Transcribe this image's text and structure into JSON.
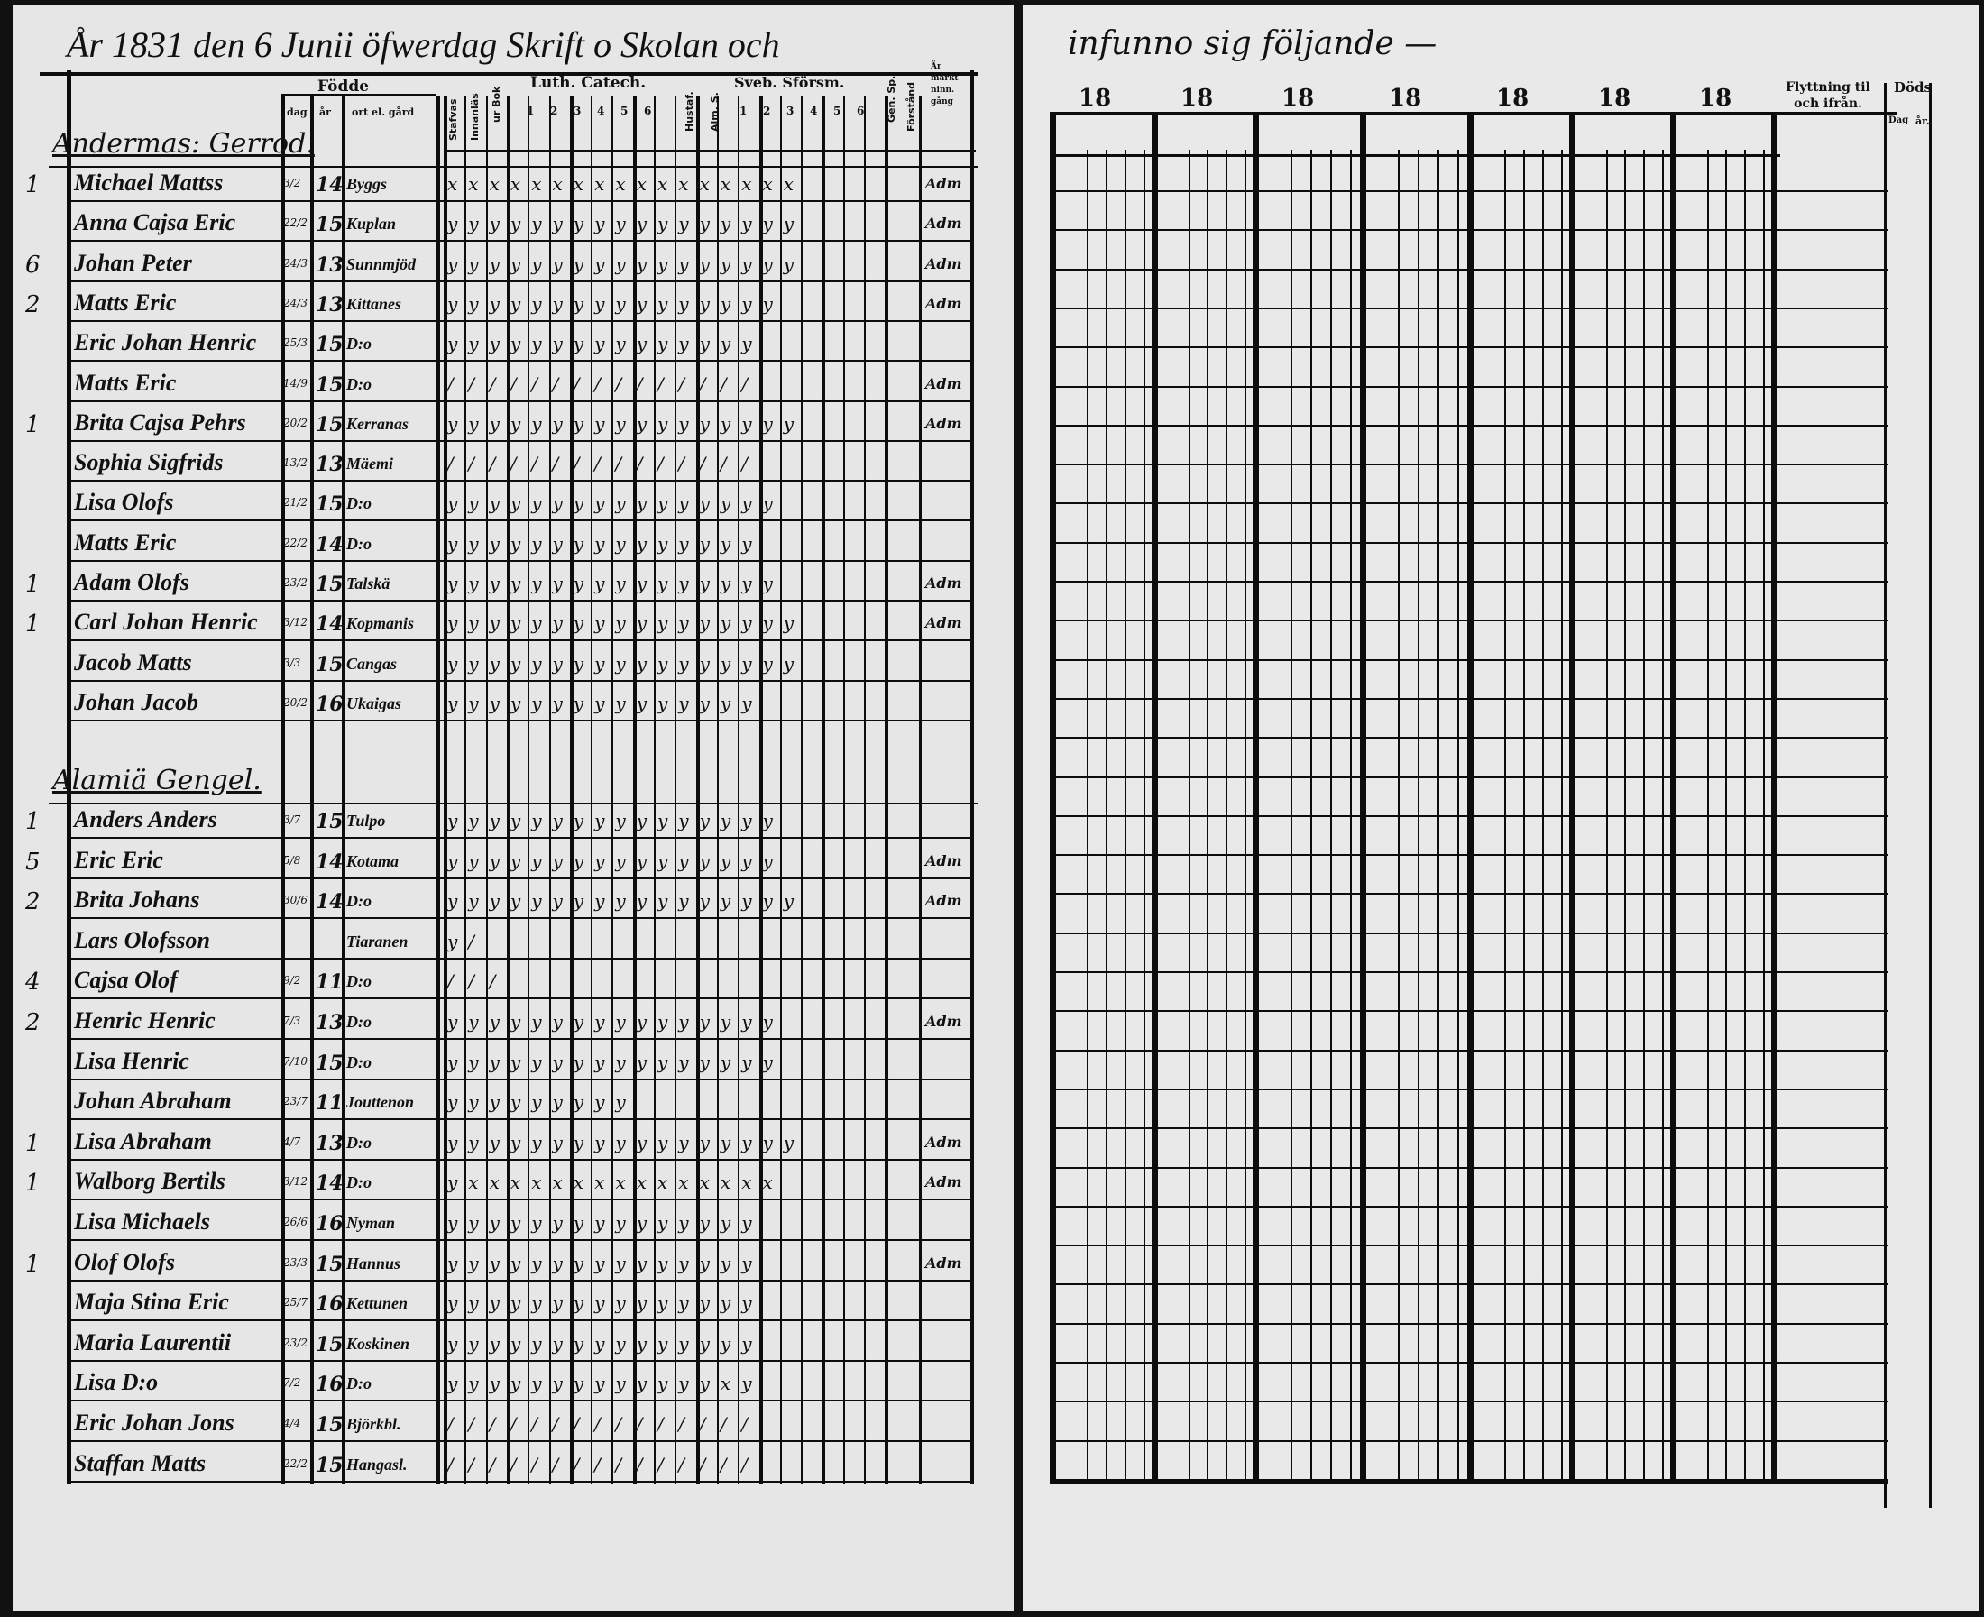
{
  "header": {
    "title_left": "År 1831 den 6 Junii öfwerdag Skrift o Skolan och",
    "title_right": "infunno sig följande —"
  },
  "columns": {
    "fodde": "Födde",
    "dag": "dag",
    "ar": "år",
    "ort": "ort el. gård",
    "stafvas": "Stafvas",
    "innanlas": "Innanläs",
    "ur_bok": "ur Bok",
    "luth_catech": "Luth. Catech.",
    "luth_nums": [
      "1",
      "2",
      "3",
      "4",
      "5",
      "6"
    ],
    "hustaf": "Hustaf.",
    "alm_s": "Alm. S.",
    "sveb_sforsm": "Sveb. Sförsm.",
    "sveb_nums": [
      "1",
      "2",
      "3",
      "4",
      "5",
      "6"
    ],
    "gen_sp": "Gen. Sp.",
    "forstand": "Förstånd",
    "nattv": "Är märkt ninn. gång",
    "years": [
      "18",
      "18",
      "18",
      "18",
      "18",
      "18",
      "18"
    ],
    "flyttning": "Flyttning til och ifrån.",
    "dods": "Döds",
    "dods_sub": [
      "Dag",
      "år."
    ]
  },
  "sections": [
    {
      "title": "Andermas: Gerrod.",
      "rows": [
        {
          "num": "1",
          "name": "Michael Mattss",
          "dag": "3/2",
          "ar": "14",
          "ort": "Byggs",
          "marks": "xxxxxxxxxxxxxxxxx",
          "note": "Adm"
        },
        {
          "num": "",
          "name": "Anna Cajsa Eric",
          "dag": "22/2",
          "ar": "15",
          "ort": "Kuplan",
          "marks": "yyyyyyyyyyyyyyyyy",
          "note": "Adm"
        },
        {
          "num": "6",
          "name": "Johan Peter",
          "dag": "24/3",
          "ar": "13",
          "ort": "Sunnmjöd",
          "marks": "yyyyyyyyyyyyyyyyy",
          "note": "Adm"
        },
        {
          "num": "2",
          "name": "Matts Eric",
          "dag": "24/3",
          "ar": "13",
          "ort": "Kittanes",
          "marks": "yyyyyyyyyyyyyyyy",
          "note": "Adm"
        },
        {
          "num": "",
          "name": "Eric Johan Henric",
          "dag": "25/3",
          "ar": "15",
          "ort": "D:o",
          "marks": "yyyyyyyyyyyyyyy",
          "note": ""
        },
        {
          "num": "",
          "name": "Matts Eric",
          "dag": "14/9",
          "ar": "15",
          "ort": "D:o",
          "marks": "///////////////",
          "note": "Adm"
        },
        {
          "num": "1",
          "name": "Brita Cajsa Pehrs",
          "dag": "20/2",
          "ar": "15",
          "ort": "Kerranas",
          "marks": "yyyyyyyyyyyyyyyyy",
          "note": "Adm"
        },
        {
          "num": "",
          "name": "Sophia Sigfrids",
          "dag": "13/2",
          "ar": "13",
          "ort": "Mäemi",
          "marks": "///////////////",
          "note": ""
        },
        {
          "num": "",
          "name": "Lisa Olofs",
          "dag": "21/2",
          "ar": "15",
          "ort": "D:o",
          "marks": "yyyyyyyyyyyyyyyy",
          "note": ""
        },
        {
          "num": "",
          "name": "Matts Eric",
          "dag": "22/2",
          "ar": "14",
          "ort": "D:o",
          "marks": "yyyyyyyyyyyyyyy",
          "note": ""
        },
        {
          "num": "1",
          "name": "Adam Olofs",
          "dag": "23/2",
          "ar": "15",
          "ort": "Talskä",
          "marks": "yyyyyyyyyyyyyyyy",
          "note": "Adm"
        },
        {
          "num": "1",
          "name": "Carl Johan Henric",
          "dag": "3/12",
          "ar": "14",
          "ort": "Kopmanis",
          "marks": "yyyyyyyyyyyyyyyyy",
          "note": "Adm"
        },
        {
          "num": "",
          "name": "Jacob Matts",
          "dag": "3/3",
          "ar": "15",
          "ort": "Cangas",
          "marks": "yyyyyyyyyyyyyyyyy",
          "note": ""
        },
        {
          "num": "",
          "name": "Johan Jacob",
          "dag": "20/2",
          "ar": "16",
          "ort": "Ukaigas",
          "marks": "yyyyyyyyyyyyyyy",
          "note": ""
        }
      ]
    },
    {
      "title": "Alamiä Gengel.",
      "rows": [
        {
          "num": "1",
          "name": "Anders Anders",
          "dag": "3/7",
          "ar": "15",
          "ort": "Tulpo",
          "marks": "yyyyyyyyyyyyyyyy",
          "note": ""
        },
        {
          "num": "5",
          "name": "Eric Eric",
          "dag": "5/8",
          "ar": "14",
          "ort": "Kotama",
          "marks": "yyyyyyyyyyyyyyyy",
          "note": "Adm"
        },
        {
          "num": "2",
          "name": "Brita Johans",
          "dag": "30/6",
          "ar": "14",
          "ort": "D:o",
          "marks": "yyyyyyyyyyyyyyyyy",
          "note": "Adm"
        },
        {
          "num": "",
          "name": "Lars Olofsson",
          "dag": "",
          "ar": "",
          "ort": "Tiaranen",
          "marks": "y/",
          "note": ""
        },
        {
          "num": "4",
          "name": "Cajsa Olof",
          "dag": "9/2",
          "ar": "11",
          "ort": "D:o",
          "marks": "///",
          "note": ""
        },
        {
          "num": "2",
          "name": "Henric Henric",
          "dag": "7/3",
          "ar": "13",
          "ort": "D:o",
          "marks": "yyyyyyyyyyyyyyyy",
          "note": "Adm"
        },
        {
          "num": "",
          "name": "Lisa Henric",
          "dag": "7/10",
          "ar": "15",
          "ort": "D:o",
          "marks": "yyyyyyyyyyyyyyyy",
          "note": ""
        },
        {
          "num": "",
          "name": "Johan Abraham",
          "dag": "23/7",
          "ar": "11",
          "ort": "Jouttenon",
          "marks": "yyyyyyyyy",
          "note": ""
        },
        {
          "num": "1",
          "name": "Lisa Abraham",
          "dag": "4/7",
          "ar": "13",
          "ort": "D:o",
          "marks": "yyyyyyyyyyyyyyyyy",
          "note": "Adm"
        },
        {
          "num": "1",
          "name": "Walborg Bertils",
          "dag": "3/12",
          "ar": "14",
          "ort": "D:o",
          "marks": "yxxxxxxxxxxxxxxx",
          "note": "Adm"
        },
        {
          "num": "",
          "name": "Lisa Michaels",
          "dag": "26/6",
          "ar": "16",
          "ort": "Nyman",
          "marks": "yyyyyyyyyyyyyyy",
          "note": ""
        },
        {
          "num": "1",
          "name": "Olof Olofs",
          "dag": "23/3",
          "ar": "15",
          "ort": "Hannus",
          "marks": "yyyyyyyyyyyyyyy",
          "note": "Adm"
        },
        {
          "num": "",
          "name": "Maja Stina Eric",
          "dag": "25/7",
          "ar": "16",
          "ort": "Kettunen",
          "marks": "yyyyyyyyyyyyyyy",
          "note": ""
        },
        {
          "num": "",
          "name": "Maria Laurentii",
          "dag": "23/2",
          "ar": "15",
          "ort": "Koskinen",
          "marks": "yyyyyyyyyyyyyyy",
          "note": ""
        },
        {
          "num": "",
          "name": "Lisa D:o",
          "dag": "7/2",
          "ar": "16",
          "ort": "D:o",
          "marks": "yyyyyyyyyyyyyxy",
          "note": ""
        },
        {
          "num": "",
          "name": "Eric Johan Jons",
          "dag": "4/4",
          "ar": "15",
          "ort": "Björkbl.",
          "marks": "///////////////",
          "note": ""
        },
        {
          "num": "",
          "name": "Staffan Matts",
          "dag": "22/2",
          "ar": "15",
          "ort": "Hangasl.",
          "marks": "///////////////",
          "note": ""
        }
      ]
    }
  ]
}
